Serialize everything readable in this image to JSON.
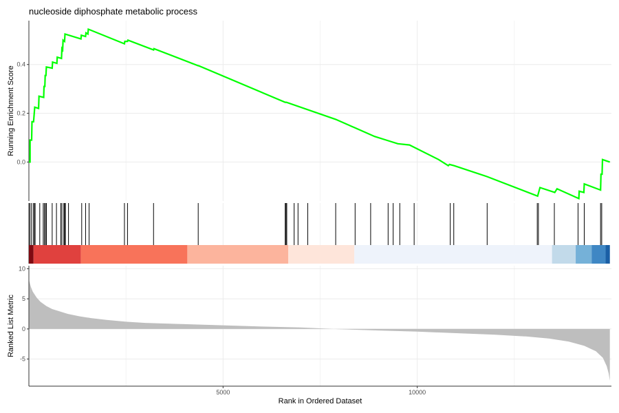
{
  "chart_data": {
    "type": "line",
    "title": "nucleoside diphosphate metabolic process",
    "xlabel": "Rank in Ordered Dataset",
    "xlim": [
      0,
      15000
    ],
    "x_ticks": [
      5000,
      10000
    ],
    "colors": {
      "es_line": "#00FF00",
      "metric_fill": "#BEBEBE",
      "hit_line": "#000000",
      "grid": "#EBEBEB"
    },
    "running_es": {
      "ylabel": "Running Enrichment Score",
      "ylim": [
        -0.16,
        0.58
      ],
      "y_ticks": [
        0.0,
        0.2,
        0.4
      ],
      "y_tick_labels": [
        "0.0",
        "0.2",
        "0.4"
      ],
      "points": [
        [
          0,
          0.0
        ],
        [
          30,
          0.0
        ],
        [
          30,
          0.09
        ],
        [
          70,
          0.09
        ],
        [
          80,
          0.165
        ],
        [
          120,
          0.165
        ],
        [
          150,
          0.225
        ],
        [
          250,
          0.22
        ],
        [
          260,
          0.27
        ],
        [
          380,
          0.265
        ],
        [
          390,
          0.31
        ],
        [
          410,
          0.31
        ],
        [
          420,
          0.355
        ],
        [
          440,
          0.355
        ],
        [
          450,
          0.39
        ],
        [
          600,
          0.385
        ],
        [
          610,
          0.41
        ],
        [
          720,
          0.405
        ],
        [
          730,
          0.43
        ],
        [
          840,
          0.425
        ],
        [
          850,
          0.465
        ],
        [
          870,
          0.46
        ],
        [
          880,
          0.5
        ],
        [
          920,
          0.495
        ],
        [
          930,
          0.525
        ],
        [
          1340,
          0.505
        ],
        [
          1350,
          0.52
        ],
        [
          1460,
          0.515
        ],
        [
          1470,
          0.53
        ],
        [
          1520,
          0.525
        ],
        [
          1530,
          0.545
        ],
        [
          2460,
          0.485
        ],
        [
          2470,
          0.495
        ],
        [
          2540,
          0.495
        ],
        [
          2550,
          0.5
        ],
        [
          3210,
          0.46
        ],
        [
          3220,
          0.465
        ],
        [
          4360,
          0.395
        ],
        [
          4370,
          0.395
        ],
        [
          6600,
          0.245
        ],
        [
          6630,
          0.245
        ],
        [
          7900,
          0.175
        ],
        [
          8400,
          0.14
        ],
        [
          8900,
          0.105
        ],
        [
          9200,
          0.09
        ],
        [
          9500,
          0.075
        ],
        [
          9800,
          0.07
        ],
        [
          10550,
          0.01
        ],
        [
          10800,
          -0.015
        ],
        [
          10830,
          -0.01
        ],
        [
          10950,
          -0.015
        ],
        [
          11800,
          -0.06
        ],
        [
          13100,
          -0.14
        ],
        [
          13160,
          -0.105
        ],
        [
          13540,
          -0.125
        ],
        [
          13600,
          -0.11
        ],
        [
          14160,
          -0.15
        ],
        [
          14170,
          -0.12
        ],
        [
          14290,
          -0.125
        ],
        [
          14300,
          -0.09
        ],
        [
          14720,
          -0.115
        ],
        [
          14730,
          -0.05
        ],
        [
          14760,
          -0.05
        ],
        [
          14770,
          0.01
        ],
        [
          14960,
          0.0
        ]
      ]
    },
    "hits": [
      20,
      60,
      110,
      140,
      160,
      280,
      370,
      400,
      430,
      450,
      600,
      710,
      820,
      850,
      900,
      920,
      940,
      1020,
      1360,
      1460,
      1550,
      2460,
      2540,
      3210,
      4360,
      6600,
      6620,
      6640,
      6830,
      6930,
      7180,
      7900,
      8400,
      8800,
      9250,
      9380,
      9550,
      9920,
      10850,
      10940,
      11800,
      13090,
      13120,
      13530,
      14140,
      14300,
      14720,
      14750
    ],
    "rank_color_bands": [
      {
        "from": 0,
        "to": 120,
        "color": "#7F0A12"
      },
      {
        "from": 120,
        "to": 1340,
        "color": "#E0413E"
      },
      {
        "from": 1340,
        "to": 4080,
        "color": "#F8735A"
      },
      {
        "from": 4080,
        "to": 6680,
        "color": "#FCB49D"
      },
      {
        "from": 6680,
        "to": 8380,
        "color": "#FEE5DA"
      },
      {
        "from": 8380,
        "to": 13470,
        "color": "#EEF3FB"
      },
      {
        "from": 13470,
        "to": 14080,
        "color": "#C2DAEA"
      },
      {
        "from": 14080,
        "to": 14490,
        "color": "#75B1D8"
      },
      {
        "from": 14490,
        "to": 14850,
        "color": "#3F87C4"
      },
      {
        "from": 14850,
        "to": 14960,
        "color": "#1A5FA5"
      }
    ],
    "ranked_metric": {
      "ylabel": "Ranked List Metric",
      "ylim": [
        -9.5,
        10.5
      ],
      "y_ticks": [
        -5,
        0,
        5,
        10
      ],
      "y_tick_labels": [
        "-5",
        "0",
        "5",
        "10"
      ],
      "points": [
        [
          0,
          8.2
        ],
        [
          50,
          7.0
        ],
        [
          100,
          6.2
        ],
        [
          200,
          5.2
        ],
        [
          300,
          4.5
        ],
        [
          450,
          3.8
        ],
        [
          600,
          3.3
        ],
        [
          800,
          2.9
        ],
        [
          1000,
          2.5
        ],
        [
          1300,
          2.1
        ],
        [
          1600,
          1.8
        ],
        [
          2000,
          1.5
        ],
        [
          2500,
          1.2
        ],
        [
          3000,
          1.0
        ],
        [
          4000,
          0.8
        ],
        [
          5000,
          0.6
        ],
        [
          6000,
          0.4
        ],
        [
          7000,
          0.25
        ],
        [
          7500,
          0.1
        ],
        [
          8000,
          -0.05
        ],
        [
          9000,
          -0.25
        ],
        [
          10000,
          -0.45
        ],
        [
          11000,
          -0.7
        ],
        [
          12000,
          -0.95
        ],
        [
          12800,
          -1.25
        ],
        [
          13400,
          -1.6
        ],
        [
          13900,
          -2.1
        ],
        [
          14300,
          -2.8
        ],
        [
          14600,
          -3.7
        ],
        [
          14780,
          -4.8
        ],
        [
          14880,
          -6.2
        ],
        [
          14930,
          -7.4
        ],
        [
          14960,
          -8.6
        ]
      ]
    }
  }
}
